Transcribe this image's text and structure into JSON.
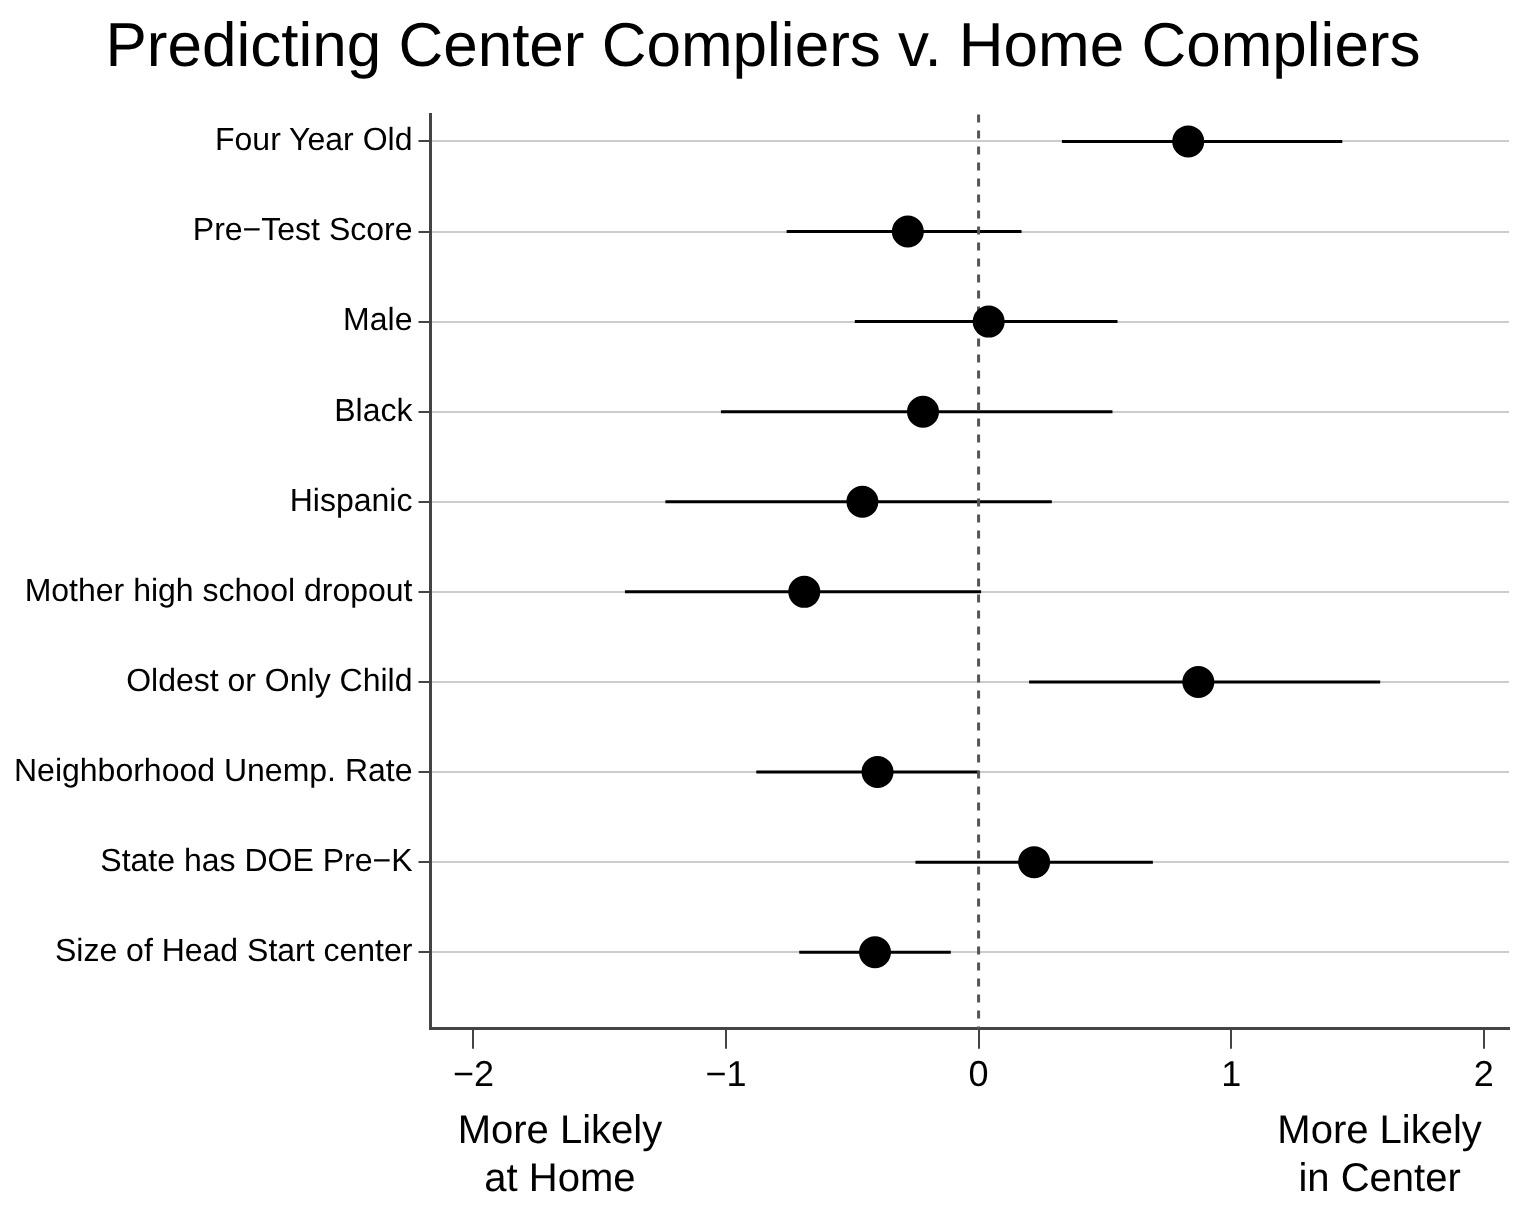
{
  "chart_data": {
    "type": "scatter",
    "orientation": "horizontal",
    "title": "Predicting Center Compliers v. Home Compliers",
    "categories": [
      "Four Year Old",
      "Pre−Test Score",
      "Male",
      "Black",
      "Hispanic",
      "Mother high school dropout",
      "Oldest or Only Child",
      "Neighborhood Unemp. Rate",
      "State has DOE Pre−K",
      "Size of Head Start center"
    ],
    "values": [
      0.83,
      -0.28,
      0.04,
      -0.22,
      -0.46,
      -0.69,
      0.87,
      -0.4,
      0.22,
      -0.41
    ],
    "errors": [
      [
        0.33,
        1.44
      ],
      [
        -0.76,
        0.17
      ],
      [
        -0.49,
        0.55
      ],
      [
        -1.02,
        0.53
      ],
      [
        -1.24,
        0.29
      ],
      [
        -1.4,
        0.01
      ],
      [
        0.2,
        1.59
      ],
      [
        -0.88,
        0.0
      ],
      [
        -0.25,
        0.69
      ],
      [
        -0.71,
        -0.11
      ]
    ],
    "color": "#000000",
    "marker": "circle",
    "grid": "y",
    "legend": false,
    "xlim": [
      -2.17,
      2.1
    ],
    "xticks": [
      {
        "value": -2,
        "label": "−2"
      },
      {
        "value": -1,
        "label": "−1"
      },
      0,
      1,
      2
    ],
    "ref_lines": [
      {
        "axis": "x",
        "value": 0,
        "line_style": "dashed",
        "color": "#555555"
      }
    ],
    "annotations": [
      "More Likely\nat Home",
      "More Likely\nin Center"
    ]
  }
}
